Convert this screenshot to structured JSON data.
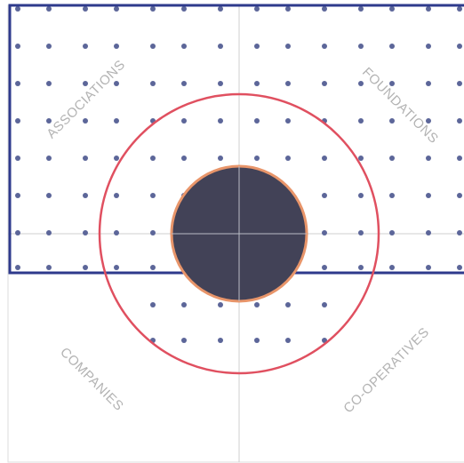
{
  "labels": {
    "top_left": "ASSOCIATIONS",
    "top_right": "FOUNDATIONS",
    "bottom_left": "COMPANIES",
    "bottom_right": "CO-OPERATIVES"
  },
  "colors": {
    "background": "#ffffff",
    "frame": "#dddddd",
    "axis": "#cfcfcf",
    "dot": "#5c6699",
    "highlight_box": "#2e3a8c",
    "outer_ring": "#e05060",
    "core_fill": "#424257",
    "core_stroke": "#e8956a",
    "core_cross": "#b9bcc6",
    "label": "#b3b3b3"
  }
}
